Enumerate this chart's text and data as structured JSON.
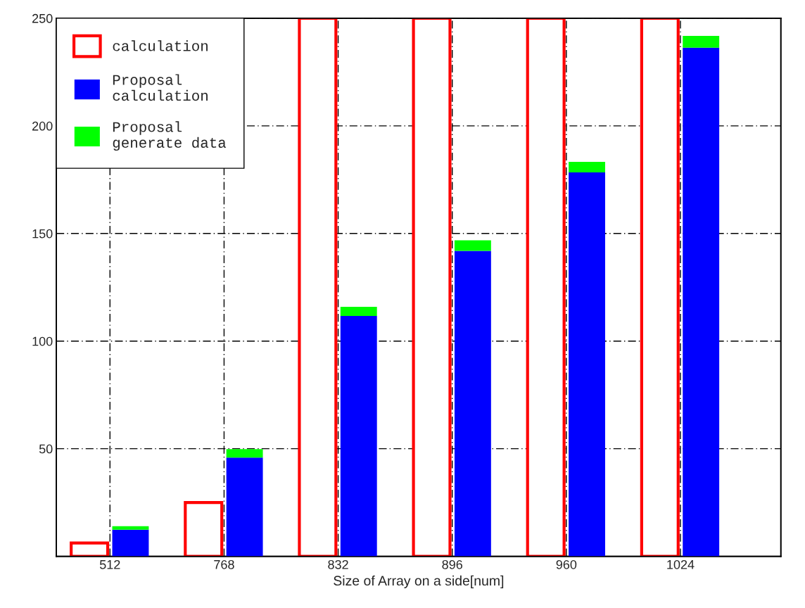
{
  "chart_data": [
    {
      "type": "bar",
      "xlabel": "Size of Array on a side[num]",
      "categories": [
        "512",
        "768",
        "832",
        "896",
        "960",
        "1024"
      ],
      "series": [
        {
          "name": "calculation",
          "color": "#ff0000",
          "values": [
            6.2,
            25,
            250,
            250,
            250,
            250
          ]
        }
      ],
      "ylim": [
        0,
        250
      ],
      "yticks": [
        50,
        100,
        150,
        200,
        250
      ],
      "grid": true,
      "legend": "top left"
    },
    {
      "type": "bar",
      "stacked": true,
      "tick_labels": false,
      "legend": "top left",
      "categories": [
        "512",
        "768",
        "832",
        "896",
        "960",
        "1024"
      ],
      "series": [
        {
          "name": "Proposal\ncalculation",
          "color": "#0000ff",
          "values": [
            12.4,
            45.9,
            111.7,
            141.9,
            178.4,
            236.3
          ]
        },
        {
          "name": "Proposal\ngenerate data",
          "color": "#00ff00",
          "values": [
            1.6,
            3.9,
            4.2,
            4.9,
            4.9,
            5.5
          ]
        }
      ],
      "ylim": [
        0,
        250
      ],
      "yticks": [
        50,
        100,
        150,
        200,
        250
      ]
    }
  ]
}
